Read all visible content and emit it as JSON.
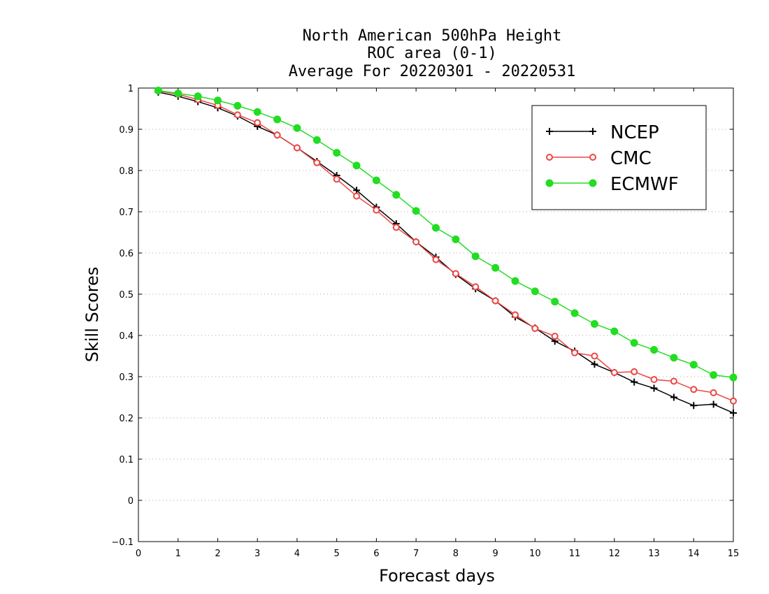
{
  "chart_data": {
    "type": "line",
    "title_lines": [
      "North American 500hPa Height",
      "ROC area (0-1)",
      "Average For 20220301 - 20220531"
    ],
    "xlabel": "Forecast days",
    "ylabel": "Skill Scores",
    "xlim": [
      0,
      15
    ],
    "ylim": [
      -0.1,
      1
    ],
    "x_ticks": [
      "0",
      "1",
      "2",
      "3",
      "4",
      "5",
      "6",
      "7",
      "8",
      "9",
      "10",
      "11",
      "12",
      "13",
      "14",
      "15"
    ],
    "y_ticks": [
      "-0.1",
      "0",
      "0.1",
      "0.2",
      "0.3",
      "0.4",
      "0.5",
      "0.6",
      "0.7",
      "0.8",
      "0.9",
      "1"
    ],
    "grid": "horizontal dotted",
    "legend_position": "top-right",
    "x": [
      0.5,
      1,
      1.5,
      2,
      2.5,
      3,
      3.5,
      4,
      4.5,
      5,
      5.5,
      6,
      6.5,
      7,
      7.5,
      8,
      8.5,
      9,
      9.5,
      10,
      10.5,
      11,
      11.5,
      12,
      12.5,
      13,
      13.5,
      14,
      14.5,
      15
    ],
    "series": [
      {
        "name": "NCEP",
        "color": "#000000",
        "marker": "plus",
        "values": [
          0.99,
          0.98,
          0.967,
          0.952,
          0.932,
          0.907,
          0.886,
          0.855,
          0.822,
          0.788,
          0.752,
          0.711,
          0.671,
          0.627,
          0.59,
          0.548,
          0.513,
          0.484,
          0.445,
          0.418,
          0.386,
          0.362,
          0.33,
          0.31,
          0.287,
          0.272,
          0.25,
          0.23,
          0.233,
          0.212
        ]
      },
      {
        "name": "CMC",
        "color": "#ee4444",
        "marker": "open-circle",
        "values": [
          0.993,
          0.985,
          0.972,
          0.958,
          0.935,
          0.916,
          0.886,
          0.855,
          0.819,
          0.779,
          0.738,
          0.704,
          0.662,
          0.627,
          0.584,
          0.55,
          0.518,
          0.484,
          0.45,
          0.417,
          0.398,
          0.358,
          0.35,
          0.31,
          0.312,
          0.293,
          0.289,
          0.269,
          0.261,
          0.241
        ]
      },
      {
        "name": "ECMWF",
        "color": "#22dd22",
        "marker": "filled-circle",
        "values": [
          0.994,
          0.987,
          0.98,
          0.97,
          0.957,
          0.942,
          0.924,
          0.903,
          0.874,
          0.843,
          0.812,
          0.776,
          0.741,
          0.702,
          0.661,
          0.633,
          0.592,
          0.564,
          0.532,
          0.507,
          0.482,
          0.454,
          0.428,
          0.41,
          0.382,
          0.365,
          0.346,
          0.329,
          0.304,
          0.298
        ]
      }
    ]
  }
}
